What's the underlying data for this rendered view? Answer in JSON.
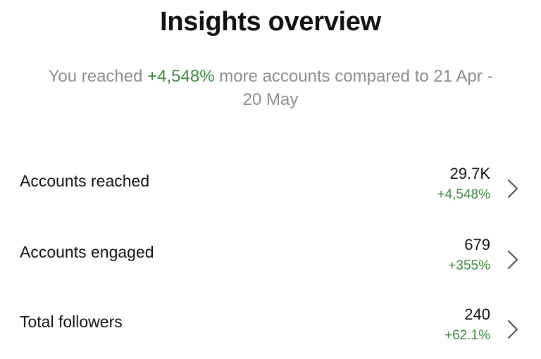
{
  "header": {
    "title": "Insights overview"
  },
  "summary": {
    "prefix": "You reached ",
    "highlight": "+4,548%",
    "suffix": " more accounts compared to 21 Apr - 20 May"
  },
  "metrics": [
    {
      "label": "Accounts reached",
      "value": "29.7K",
      "change": "+4,548%"
    },
    {
      "label": "Accounts engaged",
      "value": "679",
      "change": "+355%"
    },
    {
      "label": "Total followers",
      "value": "240",
      "change": "+62.1%"
    }
  ]
}
